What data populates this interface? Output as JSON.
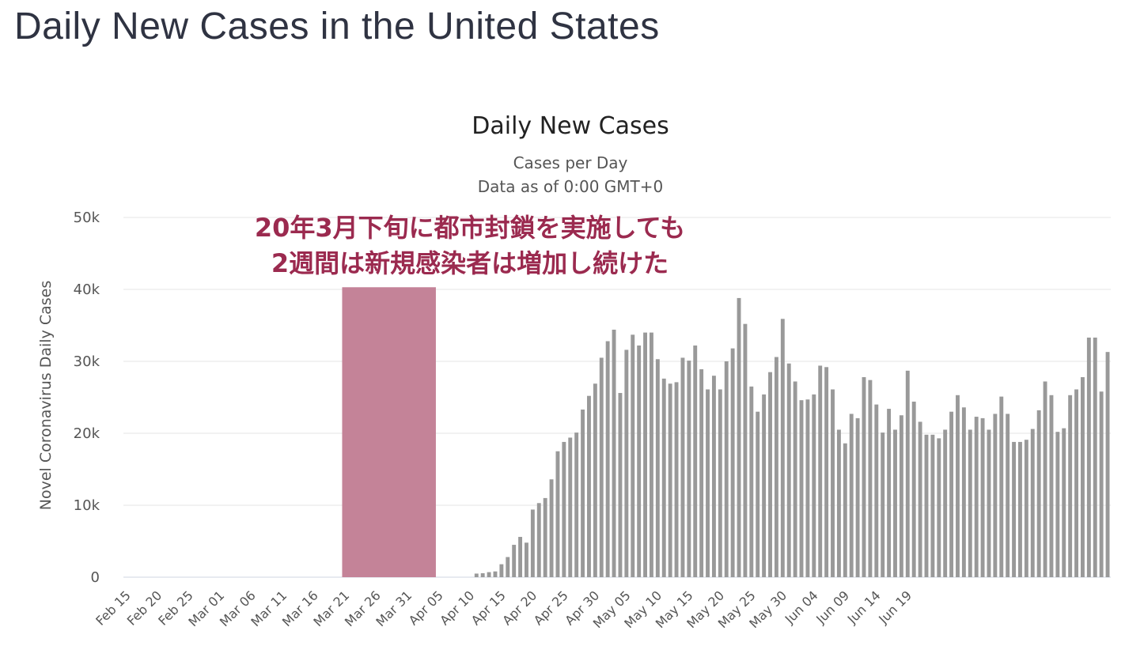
{
  "page": {
    "title": "Daily New Cases in the United States"
  },
  "chart_data": {
    "type": "bar",
    "title": "Daily New Cases",
    "subtitle": "Cases per Day",
    "subtitle2": "Data as of 0:00 GMT+0",
    "ylabel": "Novel Coronavirus Daily Cases",
    "ylim": [
      0,
      50000
    ],
    "yticks": [
      0,
      10000,
      20000,
      30000,
      40000,
      50000
    ],
    "ytick_labels": [
      "0",
      "10k",
      "20k",
      "30k",
      "40k",
      "50k"
    ],
    "grid": true,
    "bar_color": "#999999",
    "start_date": "2020-02-15",
    "x_tick_every": 5,
    "x_tick_labels": [
      "Feb 15",
      "Feb 20",
      "Feb 25",
      "Mar 01",
      "Mar 06",
      "Mar 11",
      "Mar 16",
      "Mar 21",
      "Mar 26",
      "Mar 31",
      "Apr 05",
      "Apr 10",
      "Apr 15",
      "Apr 20",
      "Apr 25",
      "Apr 30",
      "May 05",
      "May 10",
      "May 15",
      "May 20",
      "May 25",
      "May 30",
      "Jun 04",
      "Jun 09",
      "Jun 14",
      "Jun 19"
    ],
    "values": [
      0,
      0,
      0,
      0,
      0,
      0,
      0,
      0,
      0,
      0,
      0,
      0,
      0,
      0,
      0,
      0,
      0,
      0,
      0,
      0,
      0,
      0,
      0,
      0,
      0,
      0,
      0,
      0,
      0,
      0,
      0,
      0,
      0,
      0,
      0,
      0,
      0,
      0,
      0,
      0,
      0,
      0,
      0,
      0,
      0,
      0,
      0,
      0,
      0,
      0,
      0,
      0,
      0,
      0,
      0,
      0,
      500,
      550,
      700,
      800,
      1800,
      2800,
      4500,
      5600,
      4800,
      9400,
      10300,
      11000,
      13600,
      17500,
      18800,
      19400,
      20100,
      23300,
      25200,
      26900,
      30500,
      32800,
      34400,
      25600,
      31600,
      33700,
      32200,
      34000,
      34000,
      30300,
      27600,
      26900,
      27100,
      30500,
      30100,
      32200,
      28900,
      26100,
      28000,
      26100,
      30000,
      31800,
      38800,
      35200,
      26500,
      23000,
      25400,
      28500,
      30600,
      35900,
      29700,
      27200,
      24600,
      24700,
      25400,
      29400,
      29200,
      26100,
      20500,
      18600,
      22700,
      22100,
      27800,
      27400,
      24000,
      20100,
      23400,
      20500,
      22500,
      28700,
      24400,
      21600,
      19800,
      19800,
      19300,
      20500,
      23000,
      25300,
      23600,
      20500,
      22300,
      22100,
      20500,
      22700,
      25100,
      22700,
      18800,
      18800,
      19100,
      20600,
      23200,
      27200,
      25300,
      20200,
      20700,
      25300,
      26100,
      27800,
      33300,
      33300,
      25800,
      31300
    ],
    "annotation": {
      "line1": "20年3月下旬に都市封鎖を実施しても",
      "line2": "2週間は新規感染者は増加し続けた",
      "color": "#9b2a4f",
      "highlight_color": "#c48398",
      "highlight_start": "2020-03-21",
      "highlight_end": "2020-04-04"
    }
  }
}
